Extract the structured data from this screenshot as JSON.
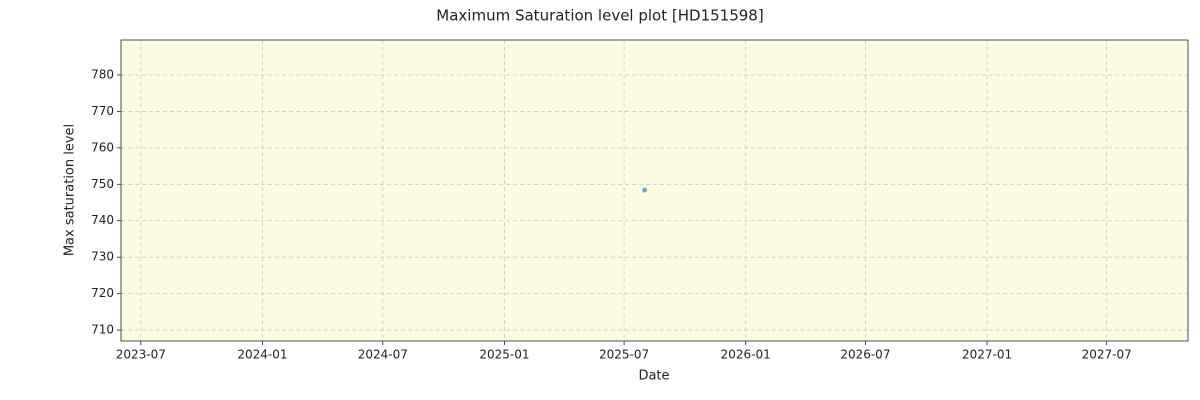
{
  "chart_data": {
    "type": "scatter",
    "title": "Maximum Saturation level plot [HD151598]",
    "xlabel": "Date",
    "ylabel": "Max saturation level",
    "series": [
      {
        "name": "Max saturation level",
        "color": "#5b8fc9",
        "x": [
          "2025-08"
        ],
        "values": [
          748.4
        ]
      }
    ],
    "xlim": [
      "2023-06",
      "2027-11"
    ],
    "xticks": [
      "2023-07",
      "2024-01",
      "2024-07",
      "2025-01",
      "2025-07",
      "2026-01",
      "2026-07",
      "2027-01",
      "2027-07"
    ],
    "ylim": [
      707,
      789.6
    ],
    "yticks": [
      710,
      720,
      730,
      740,
      750,
      760,
      770,
      780
    ],
    "grid": true,
    "background": "#fcfce2"
  }
}
